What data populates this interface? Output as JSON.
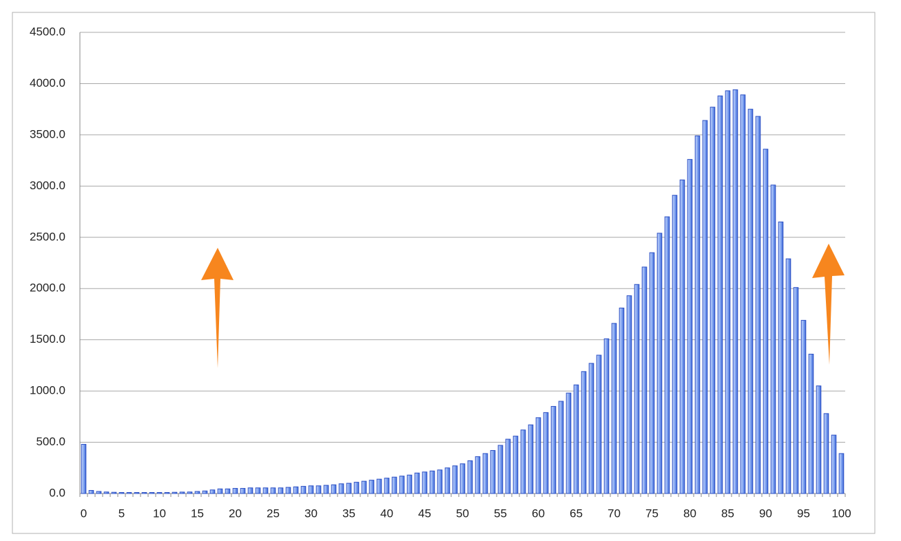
{
  "chart_data": {
    "type": "bar",
    "categories": [
      0,
      null,
      null,
      null,
      null,
      5,
      null,
      null,
      null,
      null,
      10,
      null,
      null,
      null,
      null,
      15,
      null,
      null,
      null,
      null,
      20,
      null,
      null,
      null,
      null,
      25,
      null,
      null,
      null,
      null,
      30,
      null,
      null,
      null,
      null,
      35,
      null,
      null,
      null,
      null,
      40,
      null,
      null,
      null,
      null,
      45,
      null,
      null,
      null,
      null,
      50,
      null,
      null,
      null,
      null,
      55,
      null,
      null,
      null,
      null,
      60,
      null,
      null,
      null,
      null,
      65,
      null,
      null,
      null,
      null,
      70,
      null,
      null,
      null,
      null,
      75,
      null,
      null,
      null,
      null,
      80,
      null,
      null,
      null,
      null,
      85,
      null,
      null,
      null,
      null,
      90,
      null,
      null,
      null,
      null,
      95,
      null,
      null,
      null,
      null,
      100
    ],
    "values": [
      480,
      30,
      20,
      15,
      12,
      10,
      10,
      10,
      10,
      10,
      10,
      10,
      12,
      14,
      15,
      20,
      25,
      35,
      45,
      45,
      50,
      50,
      55,
      55,
      55,
      55,
      55,
      60,
      65,
      70,
      75,
      75,
      80,
      85,
      95,
      100,
      110,
      120,
      130,
      140,
      150,
      160,
      170,
      180,
      200,
      210,
      220,
      230,
      250,
      270,
      290,
      320,
      360,
      390,
      420,
      470,
      530,
      560,
      620,
      670,
      740,
      790,
      850,
      900,
      980,
      1060,
      1190,
      1270,
      1350,
      1510,
      1660,
      1810,
      1930,
      2040,
      2210,
      2350,
      2540,
      2700,
      2910,
      3060,
      3260,
      3490,
      3640,
      3770,
      3880,
      3930,
      3940,
      3890,
      3750,
      3680,
      3360,
      3010,
      2650,
      2290,
      2010,
      1690,
      1360,
      1050,
      780,
      570,
      390
    ],
    "color": "#86a8f2",
    "ylim": [
      0,
      4500
    ],
    "yticks": [
      {
        "value": 0,
        "label": "0.0"
      },
      {
        "value": 500,
        "label": "500.0"
      },
      {
        "value": 1000,
        "label": "1000.0"
      },
      {
        "value": 1500,
        "label": "1500.0"
      },
      {
        "value": 2000,
        "label": "2000.0"
      },
      {
        "value": 2500,
        "label": "2500.0"
      },
      {
        "value": 3000,
        "label": "3000.0"
      },
      {
        "value": 3500,
        "label": "3500.0"
      },
      {
        "value": 4000,
        "label": "4000.0"
      },
      {
        "value": 4500,
        "label": "4500.0"
      }
    ],
    "grid": true
  }
}
